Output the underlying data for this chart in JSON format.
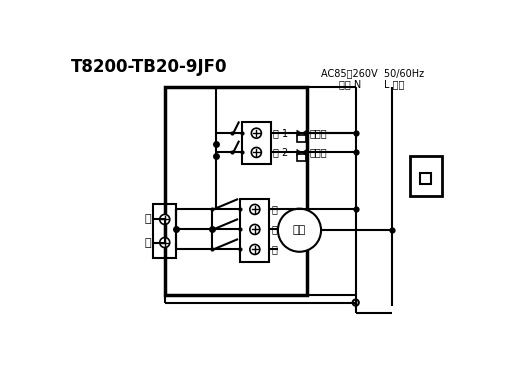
{
  "title": "T8200-TB20-9JF0",
  "ac_label": "AC85～260V  50/60Hz",
  "zero_line_label": "零线 N",
  "fire_line_label": "L 火线",
  "valve1_label": "阀 1",
  "valve2_label": "阀 2",
  "coil_label": "盘管阀",
  "heat_label": "采暖阀",
  "high_label": "高",
  "mid_label": "中",
  "low_label": "低",
  "fan_label": "风机",
  "zero_char": "零",
  "fire_char": "火"
}
